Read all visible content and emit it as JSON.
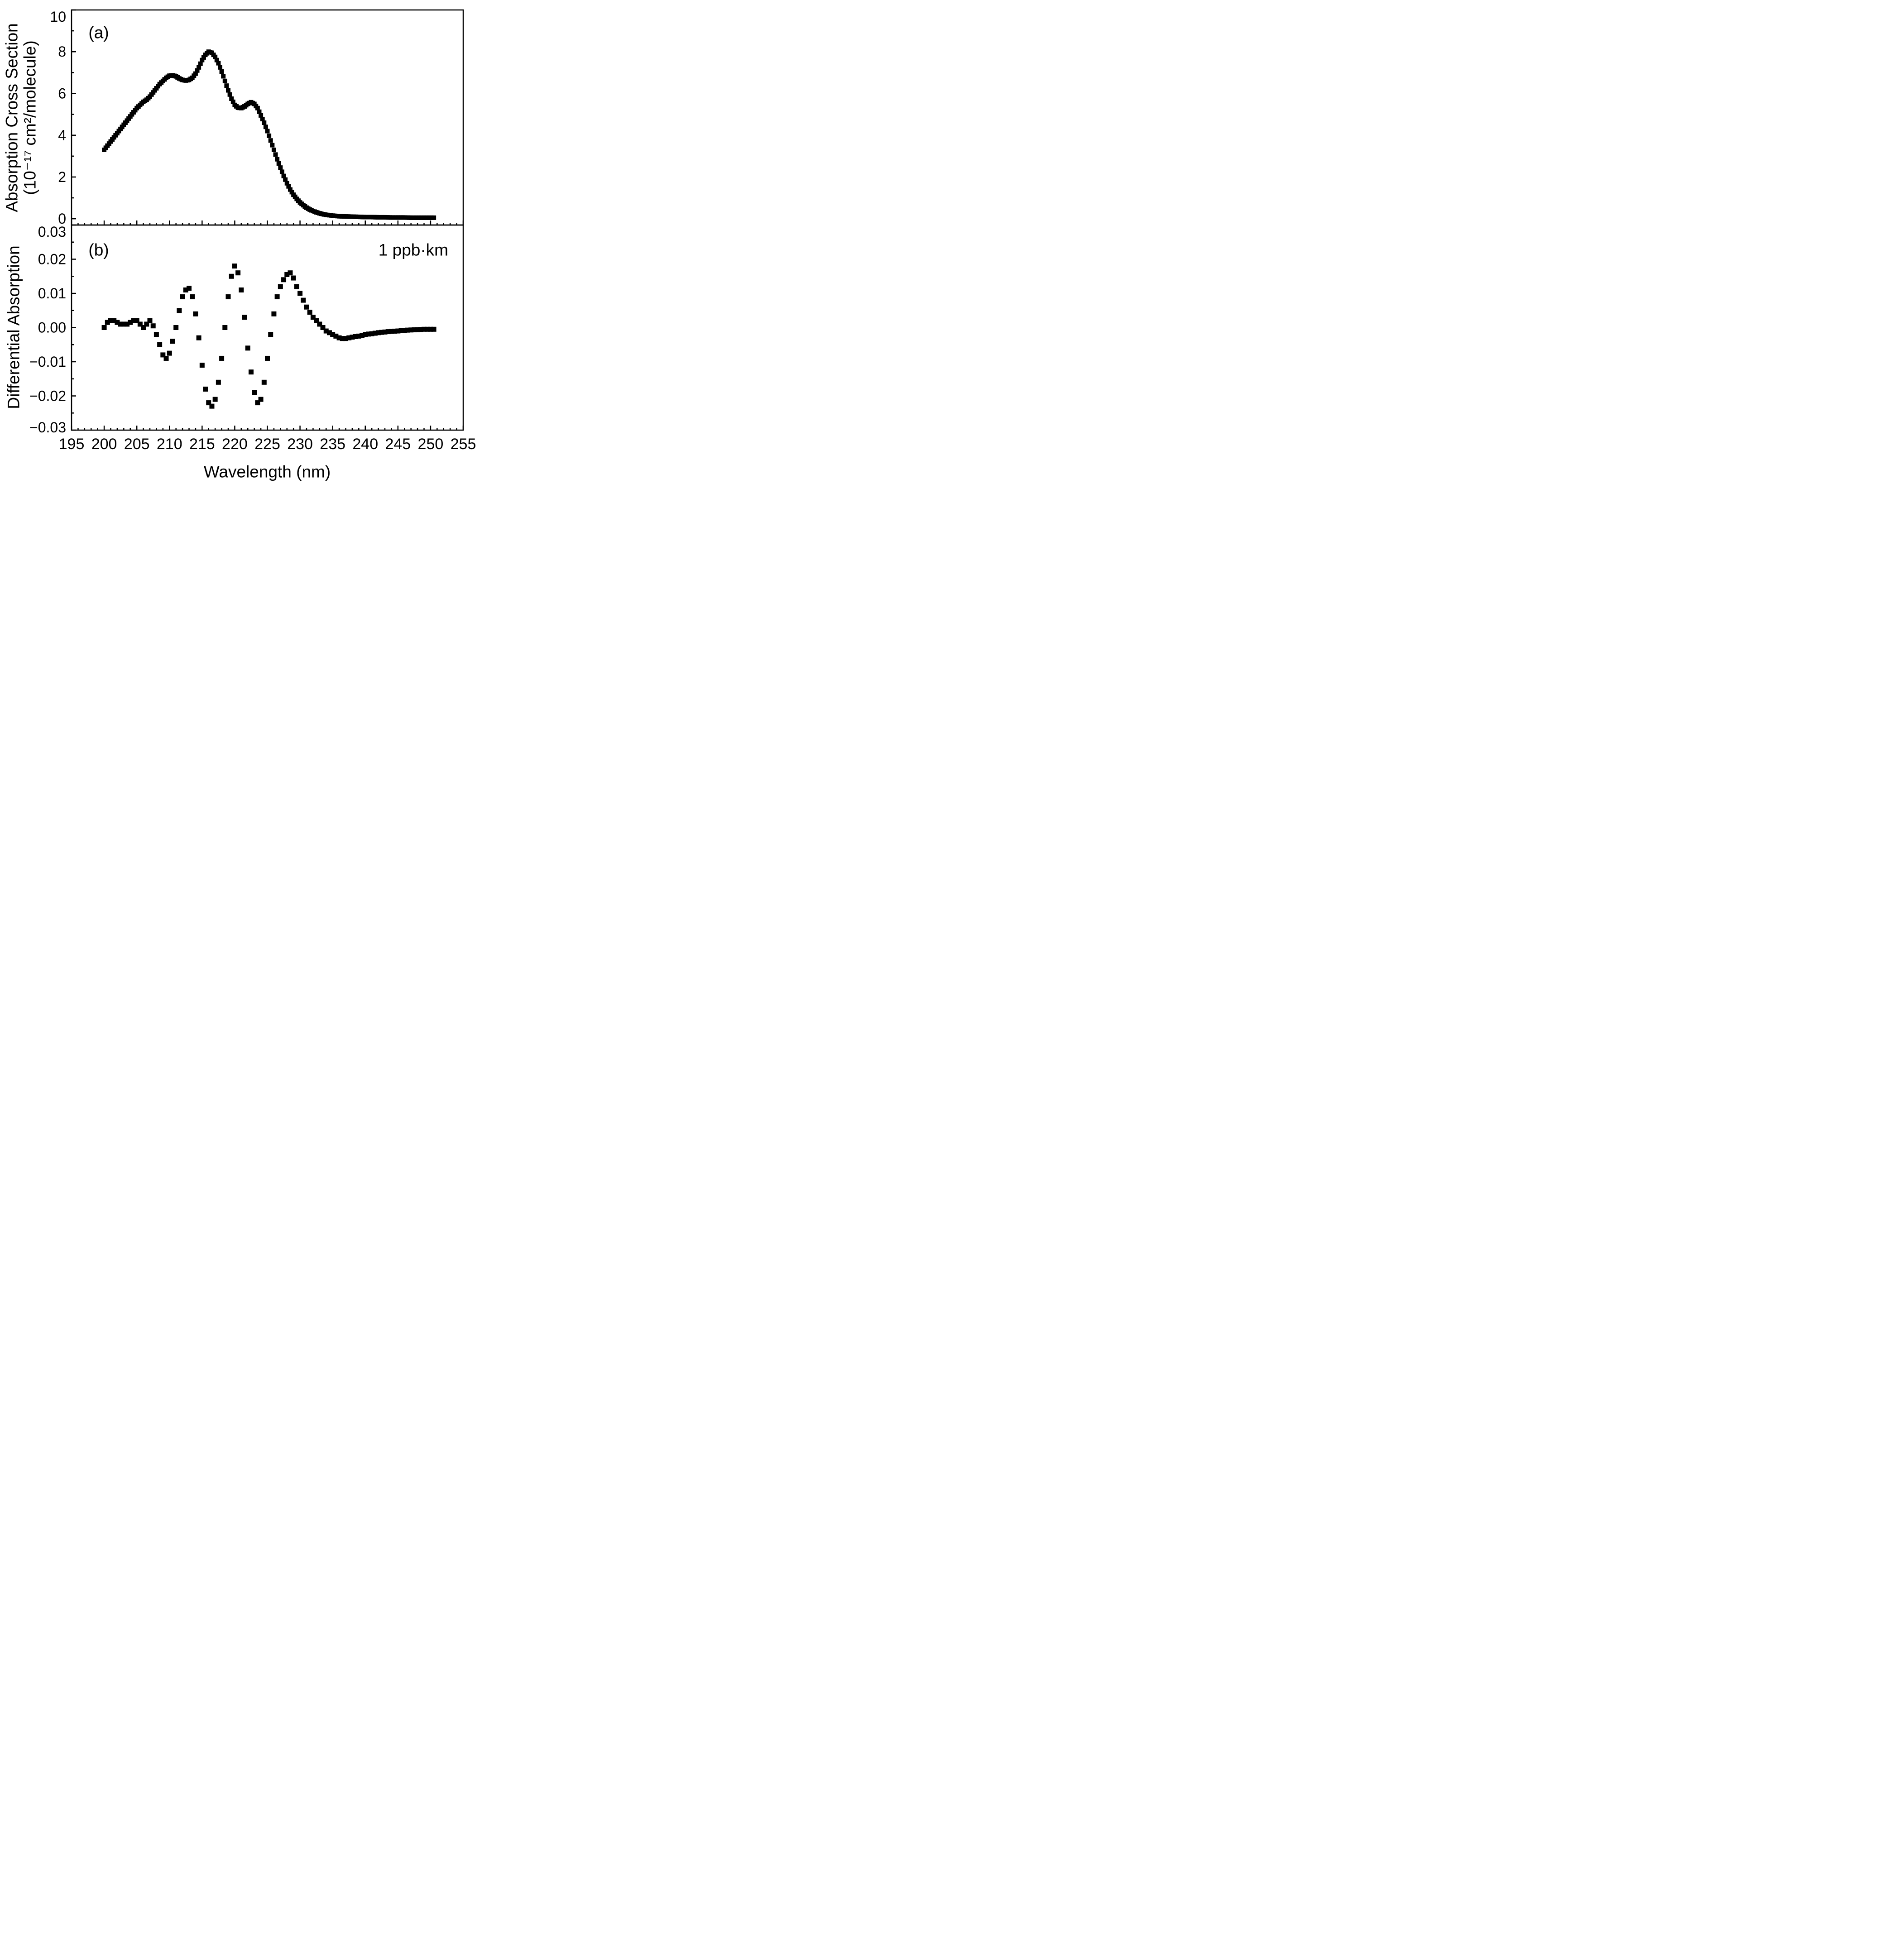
{
  "page": {
    "background": "#ffffff",
    "foreground": "#000000"
  },
  "x_axis": {
    "label": "Wavelength (nm)",
    "xlim": [
      195,
      255
    ],
    "ticks_major": [
      195,
      200,
      205,
      210,
      215,
      220,
      225,
      230,
      235,
      240,
      245,
      250,
      255
    ],
    "tick_labels": [
      "195",
      "200",
      "205",
      "210",
      "215",
      "220",
      "225",
      "230",
      "235",
      "240",
      "245",
      "250",
      "255"
    ],
    "minor_step": 1
  },
  "chart_data": [
    {
      "id": "a",
      "type": "scatter",
      "marker": "square",
      "color": "#000000",
      "panel_label": "(a)",
      "ylabel_lines": [
        "Absorption Cross Section",
        "(10⁻¹⁷ cm²/molecule)"
      ],
      "ylim": [
        -0.3,
        10
      ],
      "yticks_major": [
        0,
        2,
        4,
        6,
        8,
        10
      ],
      "ytick_labels": [
        "0",
        "2",
        "4",
        "6",
        "8",
        "10"
      ],
      "yticks_minor": [
        1,
        3,
        5,
        7,
        9
      ],
      "x_step": 0.25,
      "points": [
        [
          200,
          3.3
        ],
        [
          200.5,
          3.5
        ],
        [
          201,
          3.7
        ],
        [
          201.5,
          3.9
        ],
        [
          202,
          4.1
        ],
        [
          202.5,
          4.3
        ],
        [
          203,
          4.5
        ],
        [
          203.5,
          4.7
        ],
        [
          204,
          4.9
        ],
        [
          204.5,
          5.1
        ],
        [
          205,
          5.3
        ],
        [
          205.5,
          5.45
        ],
        [
          206,
          5.6
        ],
        [
          206.5,
          5.7
        ],
        [
          207,
          5.85
        ],
        [
          207.5,
          6.05
        ],
        [
          208,
          6.25
        ],
        [
          208.5,
          6.45
        ],
        [
          209,
          6.6
        ],
        [
          209.5,
          6.75
        ],
        [
          210,
          6.85
        ],
        [
          210.5,
          6.87
        ],
        [
          211,
          6.82
        ],
        [
          211.5,
          6.72
        ],
        [
          212,
          6.65
        ],
        [
          212.5,
          6.62
        ],
        [
          213,
          6.65
        ],
        [
          213.5,
          6.75
        ],
        [
          214,
          6.95
        ],
        [
          214.5,
          7.25
        ],
        [
          215,
          7.6
        ],
        [
          215.5,
          7.85
        ],
        [
          216,
          8.0
        ],
        [
          216.5,
          7.95
        ],
        [
          217,
          7.75
        ],
        [
          217.5,
          7.45
        ],
        [
          218,
          7.05
        ],
        [
          218.5,
          6.6
        ],
        [
          219,
          6.15
        ],
        [
          219.5,
          5.75
        ],
        [
          220,
          5.45
        ],
        [
          220.5,
          5.32
        ],
        [
          221,
          5.3
        ],
        [
          221.5,
          5.38
        ],
        [
          222,
          5.5
        ],
        [
          222.5,
          5.58
        ],
        [
          223,
          5.5
        ],
        [
          223.5,
          5.3
        ],
        [
          224,
          4.95
        ],
        [
          224.5,
          4.6
        ],
        [
          225,
          4.2
        ],
        [
          225.5,
          3.75
        ],
        [
          226,
          3.3
        ],
        [
          226.5,
          2.85
        ],
        [
          227,
          2.45
        ],
        [
          227.5,
          2.05
        ],
        [
          228,
          1.7
        ],
        [
          228.5,
          1.4
        ],
        [
          229,
          1.15
        ],
        [
          229.5,
          0.95
        ],
        [
          230,
          0.78
        ],
        [
          230.5,
          0.65
        ],
        [
          231,
          0.53
        ],
        [
          231.5,
          0.44
        ],
        [
          232,
          0.37
        ],
        [
          232.5,
          0.31
        ],
        [
          233,
          0.26
        ],
        [
          233.5,
          0.22
        ],
        [
          234,
          0.19
        ],
        [
          234.5,
          0.17
        ],
        [
          235,
          0.15
        ],
        [
          236,
          0.12
        ],
        [
          237,
          0.11
        ],
        [
          238,
          0.1
        ],
        [
          239,
          0.09
        ],
        [
          240,
          0.08
        ],
        [
          241,
          0.08
        ],
        [
          242,
          0.07
        ],
        [
          243,
          0.07
        ],
        [
          244,
          0.06
        ],
        [
          245,
          0.06
        ],
        [
          246,
          0.06
        ],
        [
          247,
          0.05
        ],
        [
          248,
          0.05
        ],
        [
          249,
          0.05
        ],
        [
          250,
          0.05
        ],
        [
          250.5,
          0.05
        ]
      ]
    },
    {
      "id": "b",
      "type": "scatter",
      "marker": "square",
      "color": "#000000",
      "panel_label": "(b)",
      "ylabel": "Differential Absorption",
      "annotation": "1 ppb·km",
      "ylim": [
        -0.03,
        0.03
      ],
      "yticks_major": [
        0.03,
        0.02,
        0.01,
        0,
        -0.01,
        -0.02,
        -0.03
      ],
      "ytick_labels": [
        "0.03",
        "0.02",
        "0.01",
        "0.00",
        "−0.01",
        "−0.02",
        "−0.03"
      ],
      "yticks_minor": [
        0.025,
        0.015,
        0.005,
        -0.005,
        -0.015,
        -0.025
      ],
      "x_step": 0.5,
      "points": [
        [
          200,
          0
        ],
        [
          200.5,
          0.0015
        ],
        [
          201,
          0.002
        ],
        [
          201.5,
          0.002
        ],
        [
          202,
          0.0015
        ],
        [
          202.5,
          0.001
        ],
        [
          203,
          0.001
        ],
        [
          203.5,
          0.001
        ],
        [
          204,
          0.0015
        ],
        [
          204.5,
          0.002
        ],
        [
          205,
          0.002
        ],
        [
          205.5,
          0.001
        ],
        [
          206,
          0
        ],
        [
          206.5,
          0.001
        ],
        [
          207,
          0.002
        ],
        [
          207.5,
          0.0005
        ],
        [
          208,
          -0.002
        ],
        [
          208.5,
          -0.005
        ],
        [
          209,
          -0.008
        ],
        [
          209.5,
          -0.009
        ],
        [
          210,
          -0.0075
        ],
        [
          210.5,
          -0.004
        ],
        [
          211,
          0
        ],
        [
          211.5,
          0.005
        ],
        [
          212,
          0.009
        ],
        [
          212.5,
          0.011
        ],
        [
          213,
          0.0115
        ],
        [
          213.5,
          0.009
        ],
        [
          214,
          0.004
        ],
        [
          214.5,
          -0.003
        ],
        [
          215,
          -0.011
        ],
        [
          215.5,
          -0.018
        ],
        [
          216,
          -0.022
        ],
        [
          216.5,
          -0.023
        ],
        [
          217,
          -0.021
        ],
        [
          217.5,
          -0.016
        ],
        [
          218,
          -0.009
        ],
        [
          218.5,
          0
        ],
        [
          219,
          0.009
        ],
        [
          219.5,
          0.015
        ],
        [
          220,
          0.018
        ],
        [
          220.5,
          0.016
        ],
        [
          221,
          0.011
        ],
        [
          221.5,
          0.003
        ],
        [
          222,
          -0.006
        ],
        [
          222.5,
          -0.013
        ],
        [
          223,
          -0.019
        ],
        [
          223.5,
          -0.022
        ],
        [
          224,
          -0.021
        ],
        [
          224.5,
          -0.016
        ],
        [
          225,
          -0.009
        ],
        [
          225.5,
          -0.002
        ],
        [
          226,
          0.004
        ],
        [
          226.5,
          0.009
        ],
        [
          227,
          0.012
        ],
        [
          227.5,
          0.014
        ],
        [
          228,
          0.0155
        ],
        [
          228.5,
          0.016
        ],
        [
          229,
          0.0145
        ],
        [
          229.5,
          0.012
        ],
        [
          230,
          0.01
        ],
        [
          230.5,
          0.008
        ],
        [
          231,
          0.006
        ],
        [
          231.5,
          0.0045
        ],
        [
          232,
          0.003
        ],
        [
          232.5,
          0.002
        ],
        [
          233,
          0.001
        ],
        [
          233.5,
          0
        ],
        [
          234,
          -0.001
        ],
        [
          234.5,
          -0.0015
        ],
        [
          235,
          -0.002
        ],
        [
          235.5,
          -0.0025
        ],
        [
          236,
          -0.003
        ],
        [
          236.5,
          -0.0032
        ],
        [
          237,
          -0.0032
        ],
        [
          237.5,
          -0.003
        ],
        [
          238,
          -0.0028
        ],
        [
          239,
          -0.0025
        ],
        [
          240,
          -0.002
        ],
        [
          241,
          -0.0018
        ],
        [
          242,
          -0.0015
        ],
        [
          243,
          -0.0013
        ],
        [
          244,
          -0.0011
        ],
        [
          245,
          -0.001
        ],
        [
          246,
          -0.0008
        ],
        [
          247,
          -0.0007
        ],
        [
          248,
          -0.0006
        ],
        [
          249,
          -0.0005
        ],
        [
          250,
          -0.0005
        ],
        [
          250.5,
          -0.0005
        ]
      ]
    }
  ]
}
